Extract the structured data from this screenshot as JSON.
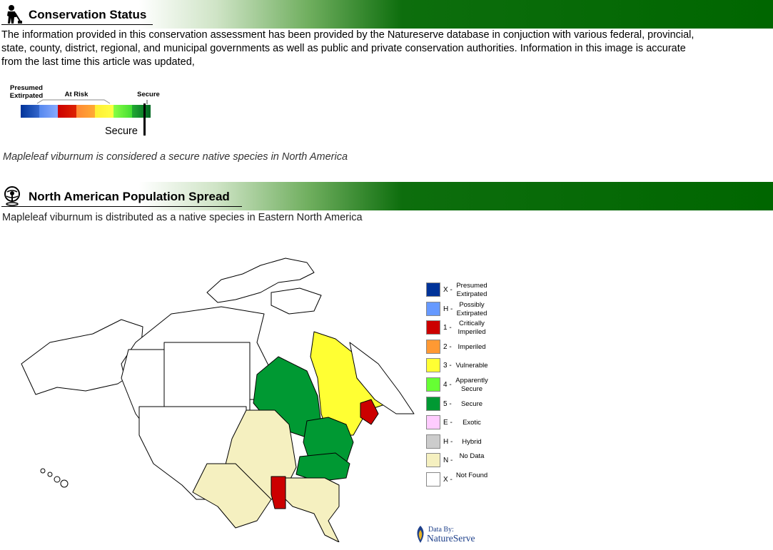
{
  "status_section": {
    "title": "Conservation Status",
    "body_lines": [
      "The information provided in this conservation assessment has been provided by the Natureserve database in conjuction with various federal, provincial,",
      " state, county, district, regional, and  municipal governments as well as public and private conservation authorities. Information in this image is accurate",
      " from the last time this article was updated,"
    ],
    "scale": {
      "labels": {
        "presumed": "Presumed Extirpated",
        "at_risk": "At Risk",
        "secure": "Secure"
      },
      "colors": [
        "#003399",
        "#6699ff",
        "#cc0000",
        "#ff9933",
        "#ffff33",
        "#66ff33",
        "#009933"
      ],
      "indicator_label": "Secure",
      "indicator_level": 0.95
    },
    "summary": "Mapleleaf viburnum is considered a secure native species in North America"
  },
  "population_section": {
    "title": "North American Population Spread",
    "description": "Mapleleaf viburnum is distributed as a native species in Eastern North America"
  },
  "legend": [
    {
      "code": "X -",
      "label": "Presumed Extirpated",
      "color": "#003399"
    },
    {
      "code": "H -",
      "label": "Possibly Extirpated",
      "color": "#6699ff"
    },
    {
      "code": "1 -",
      "label": "Critically Imperiled",
      "color": "#cc0000"
    },
    {
      "code": "2 -",
      "label": "Imperiled",
      "color": "#ff9933"
    },
    {
      "code": "3 -",
      "label": "Vulnerable",
      "color": "#ffff33"
    },
    {
      "code": "4 -",
      "label": "Apparently Secure",
      "color": "#66ff33"
    },
    {
      "code": "5 -",
      "label": "Secure",
      "color": "#009933"
    },
    {
      "code": "E -",
      "label": "Exotic",
      "color": "#ffccff"
    },
    {
      "code": "H -",
      "label": "Hybrid",
      "color": "#cccccc"
    },
    {
      "code": "N -",
      "label": "No Data",
      "color": "#f5f0c0"
    },
    {
      "code": "X -",
      "label": "Not Found",
      "color": "#ffffff"
    }
  ],
  "credit": {
    "prefix": "Data By:",
    "brand": "NatureServe"
  }
}
